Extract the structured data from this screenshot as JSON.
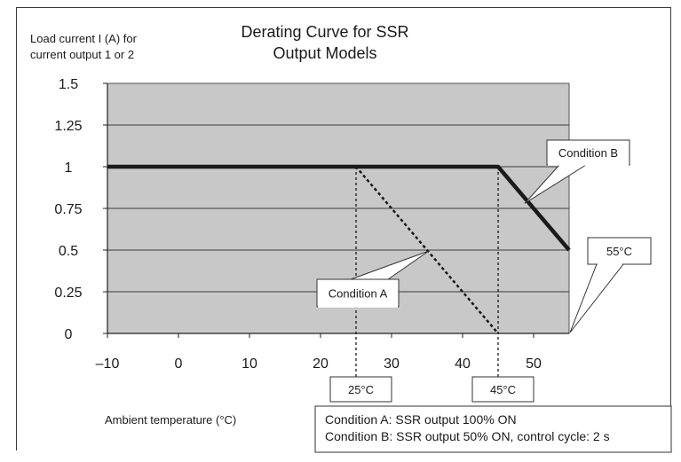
{
  "chart_data": {
    "type": "line",
    "title": [
      "Derating Curve for SSR",
      "Output Models"
    ],
    "ylabel": [
      "Load current I (A) for",
      "current output 1 or 2"
    ],
    "xlabel": "Ambient temperature (°C)",
    "xlim": [
      -10,
      55
    ],
    "ylim": [
      0,
      1.5
    ],
    "x_ticks": [
      -10,
      0,
      10,
      20,
      30,
      40,
      50
    ],
    "x_tick_labels": [
      "–10",
      "0",
      "10",
      "20",
      "30",
      "40",
      "50"
    ],
    "y_ticks": [
      0,
      0.25,
      0.5,
      0.75,
      1,
      1.25,
      1.5
    ],
    "y_tick_labels": [
      "0",
      "0.25",
      "0.5",
      "0.75",
      "1",
      "1.25",
      "1.5"
    ],
    "grid": "horizontal",
    "series": [
      {
        "name": "Condition A",
        "style": "dotted",
        "x": [
          -10,
          25,
          45
        ],
        "y": [
          1,
          1,
          0
        ]
      },
      {
        "name": "Condition B",
        "style": "solid",
        "x": [
          -10,
          45,
          55
        ],
        "y": [
          1,
          1,
          0.5
        ]
      }
    ],
    "annotations": {
      "cond_a": "Condition A",
      "cond_b": "Condition B",
      "t25": "25°C",
      "t45": "45°C",
      "t55": "55°C"
    },
    "legend": [
      "Condition A: SSR output 100% ON",
      "Condition B: SSR output 50% ON, control cycle: 2 s"
    ],
    "colors": {
      "plot_bg": "#c8c8c8",
      "line": "#1a1a1a",
      "grid": "#3c3c3c"
    }
  }
}
